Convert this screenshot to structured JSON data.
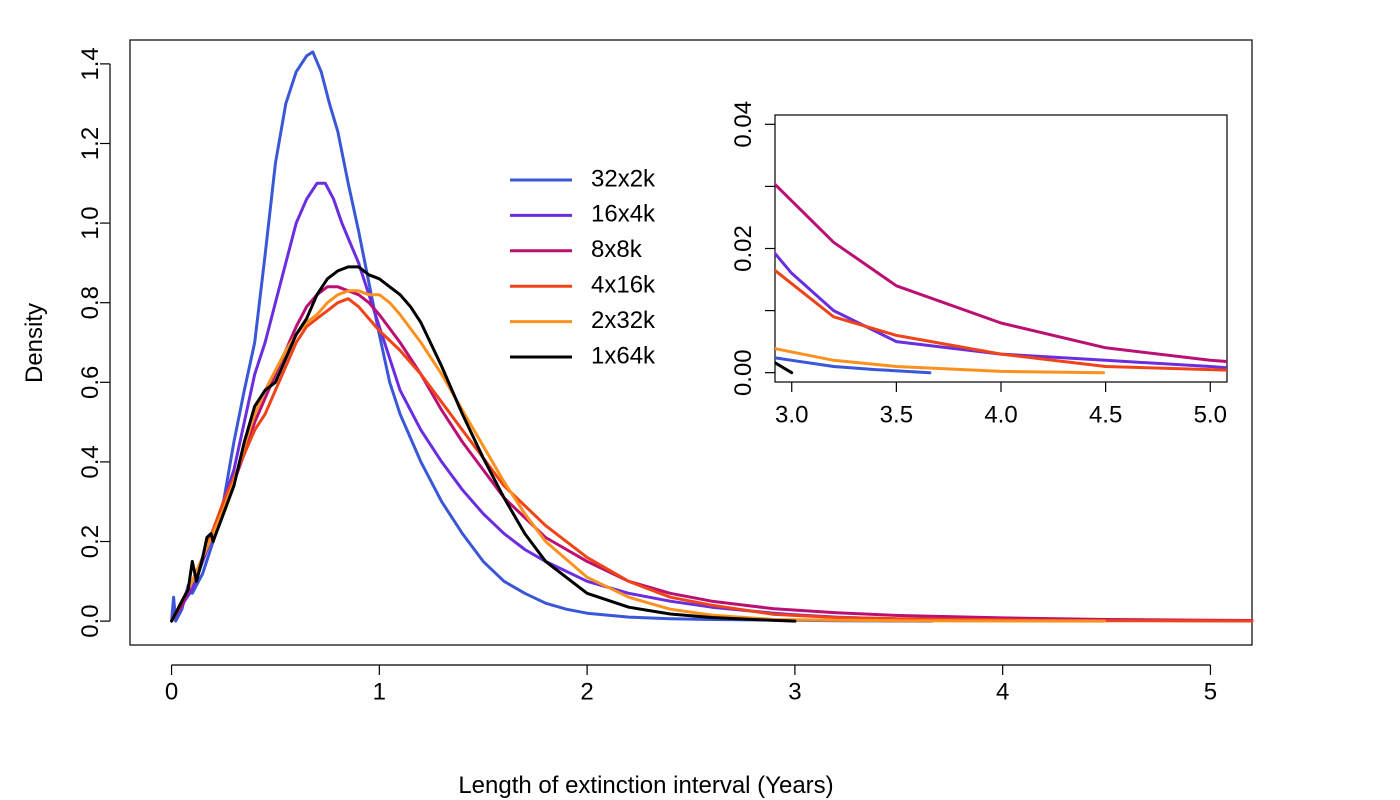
{
  "chart_data": {
    "type": "line",
    "xlabel": "Length of extinction interval (Years)",
    "ylabel": "Density",
    "xlim": [
      -0.2,
      5.2
    ],
    "ylim": [
      -0.06,
      1.46
    ],
    "xticks": [
      0,
      1,
      2,
      3,
      4,
      5
    ],
    "xtick_labels": [
      "0",
      "1",
      "2",
      "3",
      "4",
      "5"
    ],
    "yticks": [
      0.0,
      0.2,
      0.4,
      0.6,
      0.8,
      1.0,
      1.2,
      1.4
    ],
    "ytick_labels": [
      "0.0",
      "0.2",
      "0.4",
      "0.6",
      "0.8",
      "1.0",
      "1.2",
      "1.4"
    ],
    "grid": false,
    "legend_position": "top-center",
    "series": [
      {
        "name": "32x2k",
        "color": "#3a57d8",
        "x": [
          0.0,
          0.01,
          0.02,
          0.05,
          0.08,
          0.1,
          0.15,
          0.2,
          0.25,
          0.3,
          0.35,
          0.4,
          0.45,
          0.5,
          0.55,
          0.6,
          0.65,
          0.68,
          0.72,
          0.76,
          0.8,
          0.85,
          0.9,
          0.95,
          1.0,
          1.05,
          1.1,
          1.2,
          1.3,
          1.4,
          1.5,
          1.6,
          1.7,
          1.8,
          1.9,
          2.0,
          2.2,
          2.4,
          2.6,
          2.8,
          3.0,
          3.2,
          3.4,
          3.66
        ],
        "y": [
          0.0,
          0.06,
          0.0,
          0.03,
          0.09,
          0.07,
          0.12,
          0.2,
          0.3,
          0.45,
          0.58,
          0.7,
          0.92,
          1.15,
          1.3,
          1.38,
          1.42,
          1.43,
          1.38,
          1.3,
          1.23,
          1.1,
          0.98,
          0.85,
          0.72,
          0.6,
          0.52,
          0.4,
          0.3,
          0.22,
          0.15,
          0.1,
          0.07,
          0.045,
          0.03,
          0.02,
          0.01,
          0.006,
          0.004,
          0.003,
          0.002,
          0.001,
          0.0005,
          0.0
        ]
      },
      {
        "name": "16x4k",
        "color": "#6a2de0",
        "x": [
          0.0,
          0.05,
          0.1,
          0.15,
          0.2,
          0.25,
          0.3,
          0.35,
          0.4,
          0.45,
          0.5,
          0.55,
          0.6,
          0.65,
          0.7,
          0.74,
          0.78,
          0.82,
          0.86,
          0.9,
          0.95,
          1.0,
          1.05,
          1.1,
          1.2,
          1.3,
          1.4,
          1.5,
          1.6,
          1.7,
          1.8,
          2.0,
          2.2,
          2.4,
          2.6,
          2.8,
          2.9,
          3.0,
          3.2,
          3.5,
          4.0,
          4.5,
          5.0,
          5.2
        ],
        "y": [
          0.0,
          0.04,
          0.08,
          0.15,
          0.22,
          0.3,
          0.38,
          0.5,
          0.62,
          0.7,
          0.8,
          0.9,
          1.0,
          1.06,
          1.1,
          1.1,
          1.06,
          1.0,
          0.95,
          0.9,
          0.82,
          0.74,
          0.66,
          0.58,
          0.48,
          0.4,
          0.33,
          0.27,
          0.22,
          0.18,
          0.15,
          0.1,
          0.07,
          0.05,
          0.035,
          0.025,
          0.02,
          0.016,
          0.01,
          0.005,
          0.003,
          0.002,
          0.001,
          0.0005
        ]
      },
      {
        "name": "8x8k",
        "color": "#bb1073",
        "x": [
          0.0,
          0.05,
          0.1,
          0.15,
          0.2,
          0.25,
          0.3,
          0.35,
          0.4,
          0.45,
          0.5,
          0.55,
          0.6,
          0.65,
          0.7,
          0.75,
          0.8,
          0.85,
          0.9,
          0.95,
          1.0,
          1.1,
          1.2,
          1.3,
          1.4,
          1.5,
          1.6,
          1.8,
          2.0,
          2.2,
          2.4,
          2.6,
          2.9,
          3.2,
          3.5,
          4.0,
          4.5,
          5.0,
          5.2
        ],
        "y": [
          0.0,
          0.04,
          0.1,
          0.16,
          0.22,
          0.28,
          0.35,
          0.42,
          0.5,
          0.56,
          0.62,
          0.68,
          0.74,
          0.79,
          0.82,
          0.84,
          0.84,
          0.83,
          0.82,
          0.8,
          0.77,
          0.7,
          0.62,
          0.53,
          0.45,
          0.38,
          0.31,
          0.21,
          0.15,
          0.1,
          0.07,
          0.05,
          0.031,
          0.021,
          0.014,
          0.008,
          0.004,
          0.002,
          0.0015
        ]
      },
      {
        "name": "4x16k",
        "color": "#f04418",
        "x": [
          0.0,
          0.05,
          0.1,
          0.15,
          0.2,
          0.25,
          0.3,
          0.35,
          0.4,
          0.45,
          0.5,
          0.55,
          0.6,
          0.65,
          0.7,
          0.75,
          0.8,
          0.85,
          0.9,
          0.95,
          1.0,
          1.1,
          1.2,
          1.3,
          1.4,
          1.5,
          1.6,
          1.8,
          2.0,
          2.2,
          2.4,
          2.6,
          2.9,
          3.2,
          3.5,
          4.0,
          4.5,
          5.0,
          5.2
        ],
        "y": [
          0.0,
          0.05,
          0.1,
          0.16,
          0.23,
          0.3,
          0.36,
          0.42,
          0.48,
          0.52,
          0.58,
          0.64,
          0.7,
          0.74,
          0.76,
          0.78,
          0.8,
          0.81,
          0.79,
          0.76,
          0.73,
          0.68,
          0.62,
          0.55,
          0.48,
          0.41,
          0.34,
          0.24,
          0.16,
          0.1,
          0.06,
          0.04,
          0.017,
          0.009,
          0.006,
          0.003,
          0.001,
          0.0005,
          0.0003
        ]
      },
      {
        "name": "2x32k",
        "color": "#fb921f",
        "x": [
          0.0,
          0.05,
          0.1,
          0.15,
          0.2,
          0.25,
          0.3,
          0.35,
          0.4,
          0.45,
          0.5,
          0.55,
          0.6,
          0.65,
          0.7,
          0.75,
          0.8,
          0.85,
          0.9,
          0.95,
          1.0,
          1.05,
          1.1,
          1.2,
          1.3,
          1.4,
          1.5,
          1.6,
          1.7,
          1.8,
          2.0,
          2.2,
          2.4,
          2.6,
          2.9,
          3.2,
          3.5,
          4.0,
          4.49
        ],
        "y": [
          0.0,
          0.05,
          0.1,
          0.16,
          0.22,
          0.28,
          0.35,
          0.44,
          0.52,
          0.58,
          0.63,
          0.68,
          0.72,
          0.75,
          0.77,
          0.8,
          0.82,
          0.83,
          0.83,
          0.82,
          0.82,
          0.8,
          0.77,
          0.7,
          0.62,
          0.53,
          0.44,
          0.35,
          0.27,
          0.2,
          0.11,
          0.06,
          0.03,
          0.015,
          0.004,
          0.002,
          0.001,
          0.0002,
          0.0
        ]
      },
      {
        "name": "1x64k",
        "color": "#000000",
        "x": [
          0.0,
          0.05,
          0.08,
          0.1,
          0.12,
          0.15,
          0.17,
          0.19,
          0.2,
          0.25,
          0.3,
          0.35,
          0.4,
          0.45,
          0.5,
          0.55,
          0.6,
          0.65,
          0.7,
          0.75,
          0.8,
          0.85,
          0.9,
          0.95,
          1.0,
          1.05,
          1.1,
          1.15,
          1.2,
          1.3,
          1.4,
          1.5,
          1.6,
          1.7,
          1.8,
          2.0,
          2.2,
          2.4,
          2.6,
          2.8,
          3.0
        ],
        "y": [
          0.0,
          0.05,
          0.08,
          0.15,
          0.1,
          0.16,
          0.21,
          0.22,
          0.2,
          0.27,
          0.34,
          0.45,
          0.54,
          0.58,
          0.6,
          0.66,
          0.72,
          0.76,
          0.82,
          0.86,
          0.88,
          0.89,
          0.89,
          0.87,
          0.86,
          0.84,
          0.82,
          0.79,
          0.75,
          0.64,
          0.52,
          0.41,
          0.31,
          0.22,
          0.15,
          0.07,
          0.035,
          0.018,
          0.009,
          0.004,
          0.0
        ]
      }
    ],
    "inset": {
      "xlim": [
        2.92,
        5.08
      ],
      "ylim": [
        -0.0015,
        0.0415
      ],
      "xticks": [
        3.0,
        3.5,
        4.0,
        4.5,
        5.0
      ],
      "xtick_labels": [
        "3.0",
        "3.5",
        "4.0",
        "4.5",
        "5.0"
      ],
      "yticks": [
        0.0,
        0.01,
        0.02,
        0.03,
        0.04
      ],
      "ytick_labels": [
        "0.00",
        "",
        "0.02",
        "",
        "0.04"
      ]
    }
  }
}
